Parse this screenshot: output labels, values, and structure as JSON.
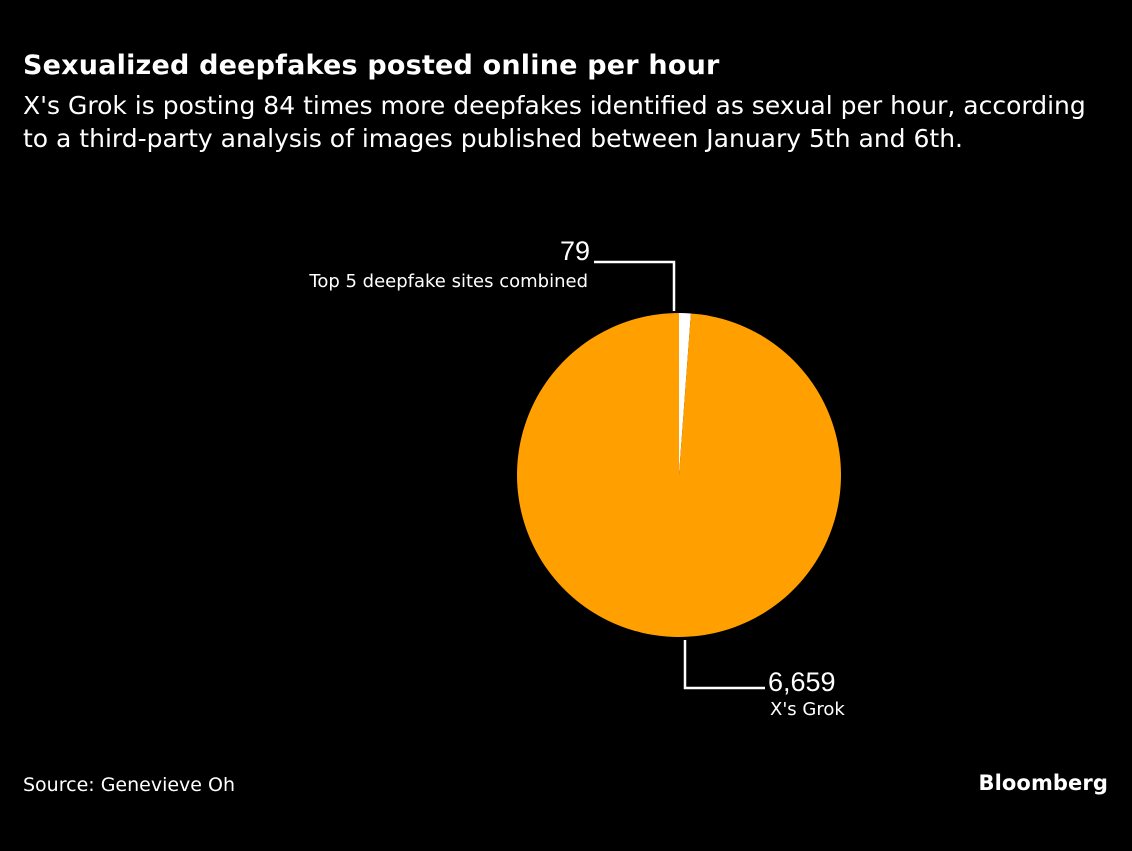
{
  "title": "Sexualized deepfakes posted online per hour",
  "subtitle": "X's Grok is posting 84 times more deepfakes identified as sexual per hour, according to a third-party analysis of images published between January 5th and 6th.",
  "source": "Source: Genevieve Oh",
  "logo": "Bloomberg",
  "colors": {
    "background": "#000000",
    "grok": "#ff9f00",
    "top5": "#ffffff",
    "text": "#ffffff"
  },
  "chart_data": {
    "type": "pie",
    "title": "Sexualized deepfakes posted online per hour",
    "slices": [
      {
        "label": "Top 5 deepfake sites combined",
        "value": 79,
        "value_label": "79",
        "color": "#ffffff"
      },
      {
        "label": "X's Grok",
        "value": 6659,
        "value_label": "6,659",
        "color": "#ff9f00"
      }
    ],
    "start": "12 o'clock, clockwise",
    "legend": "none (direct labels)"
  }
}
